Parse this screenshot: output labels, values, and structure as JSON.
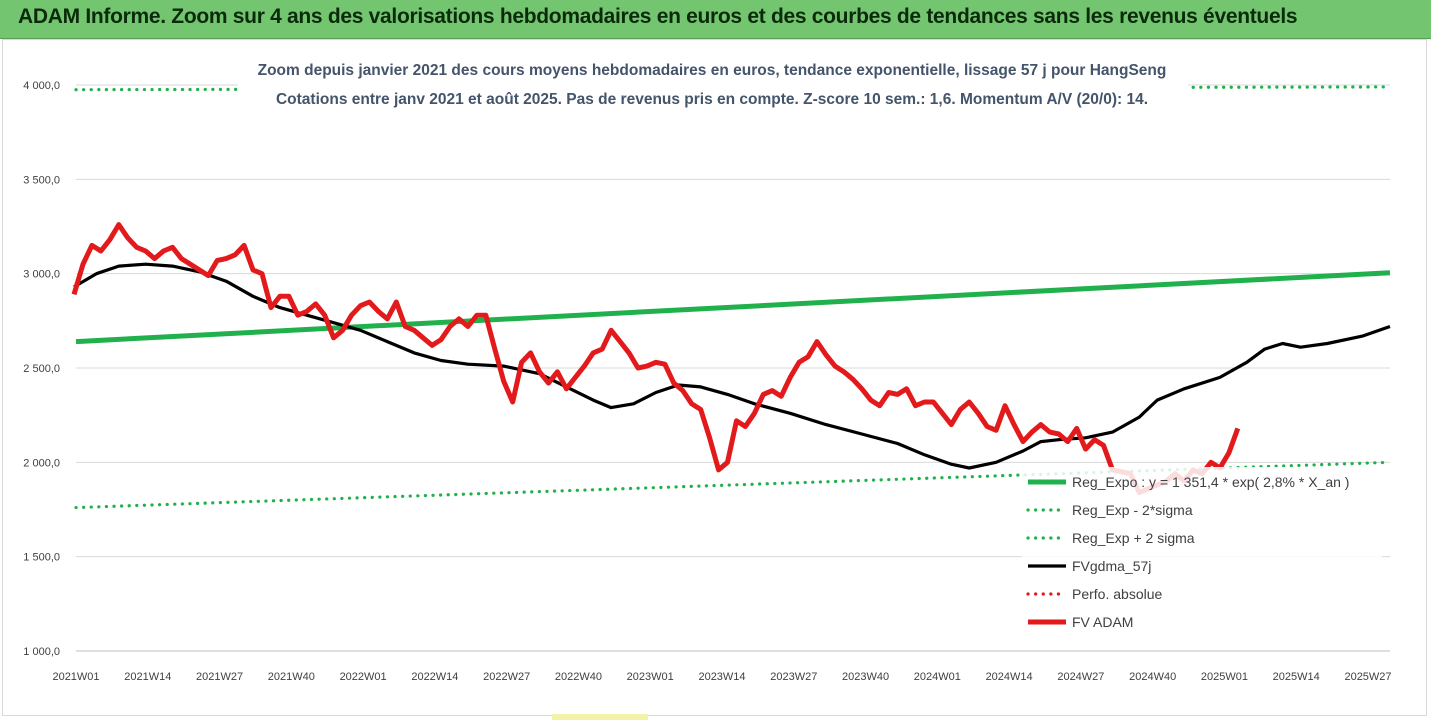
{
  "banner": {
    "title": "ADAM Informe. Zoom sur 4 ans des valorisations hebdomadaires en euros et des courbes de tendances sans les revenus éventuels",
    "background": "#73c56f"
  },
  "chart_data": {
    "type": "line",
    "subtitle_line1": "Zoom depuis janvier 2021 des cours moyens hebdomadaires en euros, tendance exponentielle, lissage 57 j pour HangSeng",
    "subtitle_line2": "Cotations entre janv 2021 et août 2025. Pas de revenus pris en compte. Z-score 10 sem.: 1,6. Momentum A/V (20/0): 14.",
    "x_tick_labels": [
      "2021W01",
      "2021W14",
      "2021W27",
      "2021W40",
      "2022W01",
      "2022W14",
      "2022W27",
      "2022W40",
      "2023W01",
      "2023W14",
      "2023W27",
      "2023W40",
      "2024W01",
      "2024W14",
      "2024W27",
      "2024W40",
      "2025W01",
      "2025W14",
      "2025W27"
    ],
    "y_tick_labels": [
      "1 000,0",
      "1 500,0",
      "2 000,0",
      "2 500,0",
      "3 000,0",
      "3 500,0",
      "4 000,0"
    ],
    "ylim": [
      1000,
      4000
    ],
    "grid": "horizontal",
    "legend_position": "bottom-right",
    "legend": [
      {
        "label": "Reg_Expo : y = 1 351,4 * exp( 2,8% *  X_an )",
        "color": "#21b14c",
        "style": "solid-thick"
      },
      {
        "label": "Reg_Exp - 2*sigma",
        "color": "#21b14c",
        "style": "dotted"
      },
      {
        "label": "Reg_Exp + 2 sigma",
        "color": "#21b14c",
        "style": "dotted"
      },
      {
        "label": "FVgdma_57j",
        "color": "#000000",
        "style": "solid"
      },
      {
        "label": "Perfo. absolue",
        "color": "#e31a1c",
        "style": "dotted"
      },
      {
        "label": "FV ADAM",
        "color": "#e31a1c",
        "style": "solid-thick"
      }
    ],
    "x_weeks": 240,
    "series": [
      {
        "name": "Reg_Expo : y = 1 351,4 * exp( 2,8% *  X_an )",
        "color": "#21b14c",
        "points": [
          [
            0,
            2640
          ],
          [
            240,
            3005
          ]
        ]
      },
      {
        "name": "Reg_Exp - 2*sigma",
        "color": "#21b14c",
        "points": [
          [
            0,
            1760
          ],
          [
            240,
            2000
          ]
        ]
      },
      {
        "name": "Reg_Exp + 2 sigma",
        "color": "#21b14c",
        "points": [
          [
            0,
            3975
          ],
          [
            240,
            3990
          ]
        ]
      },
      {
        "name": "FVgdma_57j",
        "color": "#000000",
        "points": [
          [
            0,
            2930
          ],
          [
            5,
            3000
          ],
          [
            10,
            3040
          ],
          [
            16,
            3050
          ],
          [
            22,
            3040
          ],
          [
            28,
            3010
          ],
          [
            34,
            2960
          ],
          [
            40,
            2880
          ],
          [
            46,
            2820
          ],
          [
            52,
            2780
          ],
          [
            58,
            2740
          ],
          [
            64,
            2700
          ],
          [
            70,
            2640
          ],
          [
            76,
            2580
          ],
          [
            82,
            2540
          ],
          [
            88,
            2520
          ],
          [
            96,
            2510
          ],
          [
            104,
            2470
          ],
          [
            110,
            2400
          ],
          [
            116,
            2330
          ],
          [
            120,
            2290
          ],
          [
            125,
            2310
          ],
          [
            130,
            2370
          ],
          [
            135,
            2410
          ],
          [
            140,
            2400
          ],
          [
            146,
            2360
          ],
          [
            152,
            2310
          ],
          [
            160,
            2260
          ],
          [
            168,
            2200
          ],
          [
            176,
            2150
          ],
          [
            184,
            2100
          ],
          [
            190,
            2040
          ],
          [
            196,
            1990
          ],
          [
            200,
            1970
          ],
          [
            206,
            2000
          ],
          [
            212,
            2060
          ],
          [
            216,
            2110
          ],
          [
            220,
            2120
          ],
          [
            226,
            2130
          ],
          [
            232,
            2160
          ],
          [
            238,
            2240
          ],
          [
            242,
            2330
          ],
          [
            248,
            2390
          ],
          [
            256,
            2450
          ],
          [
            262,
            2530
          ],
          [
            266,
            2600
          ],
          [
            270,
            2630
          ],
          [
            274,
            2610
          ],
          [
            280,
            2630
          ],
          [
            288,
            2670
          ],
          [
            294,
            2720
          ]
        ]
      },
      {
        "name": "FV ADAM",
        "color": "#e31a1c",
        "points": [
          [
            0,
            2890
          ],
          [
            2,
            3050
          ],
          [
            4,
            3150
          ],
          [
            6,
            3120
          ],
          [
            8,
            3180
          ],
          [
            10,
            3260
          ],
          [
            12,
            3190
          ],
          [
            14,
            3140
          ],
          [
            16,
            3120
          ],
          [
            18,
            3080
          ],
          [
            20,
            3120
          ],
          [
            22,
            3140
          ],
          [
            24,
            3080
          ],
          [
            26,
            3050
          ],
          [
            28,
            3020
          ],
          [
            30,
            2990
          ],
          [
            32,
            3070
          ],
          [
            34,
            3080
          ],
          [
            36,
            3100
          ],
          [
            38,
            3150
          ],
          [
            40,
            3020
          ],
          [
            42,
            3000
          ],
          [
            44,
            2820
          ],
          [
            46,
            2880
          ],
          [
            48,
            2880
          ],
          [
            50,
            2780
          ],
          [
            52,
            2800
          ],
          [
            54,
            2840
          ],
          [
            56,
            2780
          ],
          [
            58,
            2660
          ],
          [
            60,
            2700
          ],
          [
            62,
            2780
          ],
          [
            64,
            2830
          ],
          [
            66,
            2850
          ],
          [
            68,
            2800
          ],
          [
            70,
            2760
          ],
          [
            72,
            2850
          ],
          [
            74,
            2720
          ],
          [
            76,
            2700
          ],
          [
            78,
            2660
          ],
          [
            80,
            2620
          ],
          [
            82,
            2650
          ],
          [
            84,
            2720
          ],
          [
            86,
            2760
          ],
          [
            88,
            2720
          ],
          [
            90,
            2780
          ],
          [
            92,
            2780
          ],
          [
            94,
            2600
          ],
          [
            96,
            2430
          ],
          [
            98,
            2320
          ],
          [
            100,
            2530
          ],
          [
            102,
            2580
          ],
          [
            104,
            2480
          ],
          [
            106,
            2420
          ],
          [
            108,
            2480
          ],
          [
            110,
            2390
          ],
          [
            112,
            2450
          ],
          [
            114,
            2510
          ],
          [
            116,
            2580
          ],
          [
            118,
            2600
          ],
          [
            120,
            2700
          ],
          [
            122,
            2640
          ],
          [
            124,
            2580
          ],
          [
            126,
            2500
          ],
          [
            128,
            2510
          ],
          [
            130,
            2530
          ],
          [
            132,
            2520
          ],
          [
            134,
            2420
          ],
          [
            136,
            2380
          ],
          [
            138,
            2310
          ],
          [
            140,
            2280
          ],
          [
            142,
            2130
          ],
          [
            144,
            1960
          ],
          [
            146,
            2000
          ],
          [
            148,
            2220
          ],
          [
            150,
            2190
          ],
          [
            152,
            2260
          ],
          [
            154,
            2360
          ],
          [
            156,
            2380
          ],
          [
            158,
            2350
          ],
          [
            160,
            2450
          ],
          [
            162,
            2530
          ],
          [
            164,
            2560
          ],
          [
            166,
            2640
          ],
          [
            168,
            2570
          ],
          [
            170,
            2510
          ],
          [
            172,
            2480
          ],
          [
            174,
            2440
          ],
          [
            176,
            2390
          ],
          [
            178,
            2330
          ],
          [
            180,
            2300
          ],
          [
            182,
            2370
          ],
          [
            184,
            2360
          ],
          [
            186,
            2390
          ],
          [
            188,
            2300
          ],
          [
            190,
            2320
          ],
          [
            192,
            2320
          ],
          [
            194,
            2260
          ],
          [
            196,
            2200
          ],
          [
            198,
            2280
          ],
          [
            200,
            2320
          ],
          [
            202,
            2260
          ],
          [
            204,
            2190
          ],
          [
            206,
            2170
          ],
          [
            208,
            2300
          ],
          [
            210,
            2200
          ],
          [
            212,
            2110
          ],
          [
            214,
            2160
          ],
          [
            216,
            2200
          ],
          [
            218,
            2160
          ],
          [
            220,
            2150
          ],
          [
            222,
            2110
          ],
          [
            224,
            2180
          ],
          [
            226,
            2070
          ],
          [
            228,
            2120
          ],
          [
            230,
            2090
          ],
          [
            232,
            1960
          ],
          [
            234,
            1950
          ],
          [
            236,
            1940
          ],
          [
            238,
            1840
          ],
          [
            240,
            1860
          ],
          [
            242,
            1880
          ],
          [
            244,
            1900
          ],
          [
            246,
            1940
          ],
          [
            248,
            1900
          ],
          [
            250,
            1960
          ],
          [
            252,
            1940
          ],
          [
            254,
            2000
          ],
          [
            256,
            1970
          ],
          [
            258,
            2050
          ],
          [
            260,
            2180
          ]
        ]
      }
    ]
  }
}
